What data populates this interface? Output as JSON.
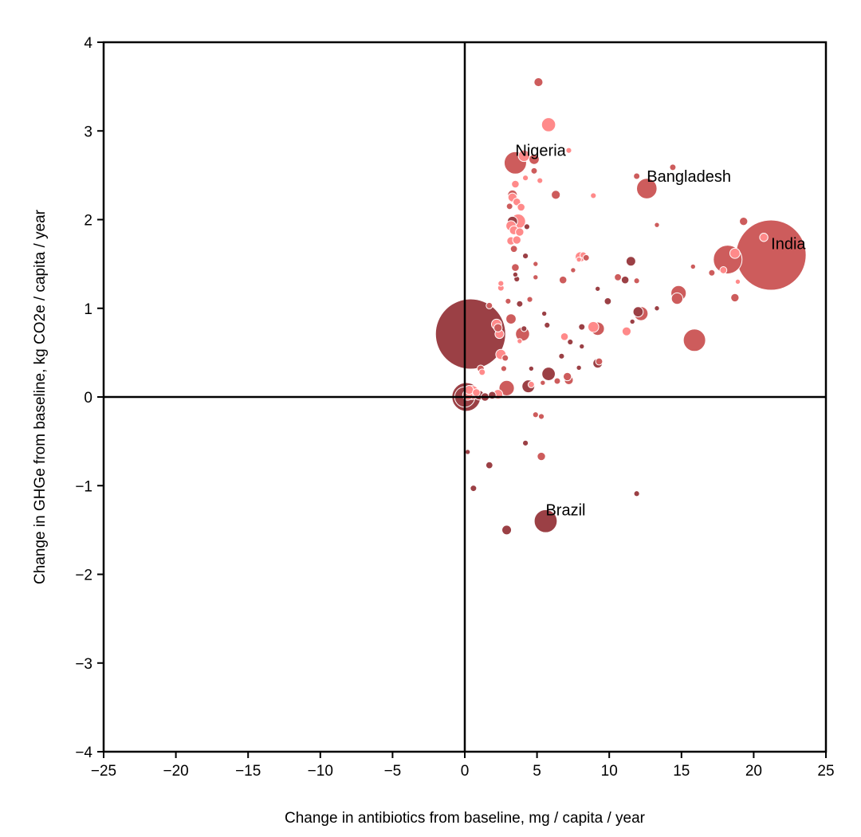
{
  "chart_data": {
    "type": "scatter",
    "title": "",
    "xlabel": "Change in antibiotics from baseline, mg / capita / year",
    "ylabel": "Change in GHGe from baseline, kg CO2e / capita / year",
    "xlim": [
      -25,
      25
    ],
    "ylim": [
      -4,
      4
    ],
    "xticks": [
      -25,
      -20,
      -15,
      -10,
      -5,
      0,
      5,
      10,
      15,
      20,
      25
    ],
    "yticks": [
      -4,
      -3,
      -2,
      -1,
      0,
      1,
      2,
      3,
      4
    ],
    "xtick_labels": [
      "−25",
      "−20",
      "−15",
      "−10",
      "−5",
      "0",
      "5",
      "10",
      "15",
      "20",
      "25"
    ],
    "ytick_labels": [
      "−4",
      "−3",
      "−2",
      "−1",
      "0",
      "1",
      "2",
      "3",
      "4"
    ],
    "grid": false,
    "reference_lines": {
      "x": 0,
      "y": 0
    },
    "colors": {
      "light": "#ff8a8a",
      "medium": "#cd5c5c",
      "dark": "#9b4045",
      "edge": "#ffffff",
      "axis": "#000000"
    },
    "points": [
      {
        "x": 0.4,
        "y": 0.71,
        "s": 11,
        "c": "dark"
      },
      {
        "x": 21.2,
        "y": 1.6,
        "s": 11,
        "c": "medium"
      },
      {
        "x": 18.2,
        "y": 1.55,
        "s": 4.5,
        "c": "medium"
      },
      {
        "x": 15.9,
        "y": 0.64,
        "s": 3.5,
        "c": "medium"
      },
      {
        "x": 12.6,
        "y": 2.35,
        "s": 3.2,
        "c": "medium"
      },
      {
        "x": 3.5,
        "y": 2.64,
        "s": 3.5,
        "c": "medium"
      },
      {
        "x": 5.6,
        "y": -1.4,
        "s": 3.6,
        "c": "dark"
      },
      {
        "x": 0.1,
        "y": 0.0,
        "s": 4.5,
        "c": "dark"
      },
      {
        "x": 0.0,
        "y": 0.0,
        "s": 3.2,
        "c": "dark"
      },
      {
        "x": 0.5,
        "y": 0.05,
        "s": 2.2,
        "c": "light"
      },
      {
        "x": 0.2,
        "y": 0.02,
        "s": 1.6,
        "c": "light"
      },
      {
        "x": 0.3,
        "y": 0.08,
        "s": 1.4,
        "c": "light"
      },
      {
        "x": 1.0,
        "y": 0.02,
        "s": 1.5,
        "c": "dark"
      },
      {
        "x": 1.4,
        "y": 0.0,
        "s": 1.3,
        "c": "dark"
      },
      {
        "x": 1.9,
        "y": 0.02,
        "s": 1.2,
        "c": "dark"
      },
      {
        "x": 2.3,
        "y": 0.03,
        "s": 1.5,
        "c": "light"
      },
      {
        "x": 0.8,
        "y": 0.05,
        "s": 1.2,
        "c": "light"
      },
      {
        "x": 5.8,
        "y": 3.07,
        "s": 2.2,
        "c": "light"
      },
      {
        "x": 5.1,
        "y": 3.55,
        "s": 1.4,
        "c": "medium"
      },
      {
        "x": 4.1,
        "y": 2.72,
        "s": 1.8,
        "c": "light"
      },
      {
        "x": 4.8,
        "y": 2.68,
        "s": 1.6,
        "c": "medium"
      },
      {
        "x": 7.2,
        "y": 2.78,
        "s": 0.9,
        "c": "light"
      },
      {
        "x": 4.8,
        "y": 2.55,
        "s": 1.0,
        "c": "medium"
      },
      {
        "x": 4.2,
        "y": 2.47,
        "s": 0.9,
        "c": "light"
      },
      {
        "x": 5.2,
        "y": 2.44,
        "s": 0.9,
        "c": "light"
      },
      {
        "x": 3.5,
        "y": 2.4,
        "s": 1.2,
        "c": "light"
      },
      {
        "x": 3.3,
        "y": 2.28,
        "s": 1.5,
        "c": "medium"
      },
      {
        "x": 3.3,
        "y": 2.25,
        "s": 1.4,
        "c": "light"
      },
      {
        "x": 3.6,
        "y": 2.2,
        "s": 1.2,
        "c": "light"
      },
      {
        "x": 3.1,
        "y": 2.15,
        "s": 1.0,
        "c": "medium"
      },
      {
        "x": 3.9,
        "y": 2.14,
        "s": 1.2,
        "c": "light"
      },
      {
        "x": 3.3,
        "y": 1.98,
        "s": 1.6,
        "c": "dark"
      },
      {
        "x": 3.7,
        "y": 1.98,
        "s": 2.3,
        "c": "light"
      },
      {
        "x": 3.2,
        "y": 1.93,
        "s": 1.6,
        "c": "light"
      },
      {
        "x": 3.4,
        "y": 1.88,
        "s": 1.4,
        "c": "light"
      },
      {
        "x": 3.8,
        "y": 1.86,
        "s": 1.3,
        "c": "light"
      },
      {
        "x": 4.3,
        "y": 1.92,
        "s": 0.9,
        "c": "dark"
      },
      {
        "x": 3.2,
        "y": 1.76,
        "s": 1.3,
        "c": "light"
      },
      {
        "x": 3.6,
        "y": 1.77,
        "s": 1.3,
        "c": "light"
      },
      {
        "x": 3.4,
        "y": 1.67,
        "s": 1.1,
        "c": "medium"
      },
      {
        "x": 4.2,
        "y": 1.59,
        "s": 0.9,
        "c": "dark"
      },
      {
        "x": 3.5,
        "y": 1.46,
        "s": 1.2,
        "c": "medium"
      },
      {
        "x": 4.9,
        "y": 1.5,
        "s": 0.8,
        "c": "medium"
      },
      {
        "x": 3.6,
        "y": 1.33,
        "s": 0.9,
        "c": "dark"
      },
      {
        "x": 3.5,
        "y": 1.38,
        "s": 0.8,
        "c": "dark"
      },
      {
        "x": 2.5,
        "y": 1.28,
        "s": 0.9,
        "c": "light"
      },
      {
        "x": 2.5,
        "y": 1.23,
        "s": 1.0,
        "c": "light"
      },
      {
        "x": 4.9,
        "y": 1.35,
        "s": 0.8,
        "c": "medium"
      },
      {
        "x": 6.8,
        "y": 1.32,
        "s": 1.2,
        "c": "medium"
      },
      {
        "x": 3.0,
        "y": 1.08,
        "s": 0.9,
        "c": "medium"
      },
      {
        "x": 3.8,
        "y": 1.05,
        "s": 1.0,
        "c": "dark"
      },
      {
        "x": 4.5,
        "y": 1.1,
        "s": 0.9,
        "c": "medium"
      },
      {
        "x": 1.7,
        "y": 1.03,
        "s": 1.0,
        "c": "medium"
      },
      {
        "x": 7.5,
        "y": 1.43,
        "s": 0.8,
        "c": "medium"
      },
      {
        "x": 8.0,
        "y": 1.58,
        "s": 1.6,
        "c": "light"
      },
      {
        "x": 8.2,
        "y": 1.6,
        "s": 1.0,
        "c": "light"
      },
      {
        "x": 8.4,
        "y": 1.57,
        "s": 1.0,
        "c": "medium"
      },
      {
        "x": 7.9,
        "y": 1.55,
        "s": 0.8,
        "c": "light"
      },
      {
        "x": 9.2,
        "y": 1.22,
        "s": 0.8,
        "c": "dark"
      },
      {
        "x": 9.9,
        "y": 1.08,
        "s": 1.1,
        "c": "dark"
      },
      {
        "x": 10.6,
        "y": 1.35,
        "s": 1.1,
        "c": "medium"
      },
      {
        "x": 11.1,
        "y": 1.32,
        "s": 1.2,
        "c": "dark"
      },
      {
        "x": 11.5,
        "y": 1.53,
        "s": 1.5,
        "c": "dark"
      },
      {
        "x": 11.6,
        "y": 0.85,
        "s": 0.8,
        "c": "dark"
      },
      {
        "x": 11.9,
        "y": 1.31,
        "s": 0.9,
        "c": "medium"
      },
      {
        "x": 11.9,
        "y": 2.49,
        "s": 1.0,
        "c": "medium"
      },
      {
        "x": 8.9,
        "y": 2.27,
        "s": 0.9,
        "c": "light"
      },
      {
        "x": 6.3,
        "y": 2.28,
        "s": 1.4,
        "c": "medium"
      },
      {
        "x": 14.4,
        "y": 2.59,
        "s": 1.0,
        "c": "medium"
      },
      {
        "x": 13.3,
        "y": 1.94,
        "s": 0.8,
        "c": "medium"
      },
      {
        "x": 15.8,
        "y": 1.47,
        "s": 0.8,
        "c": "medium"
      },
      {
        "x": 17.1,
        "y": 1.4,
        "s": 1.0,
        "c": "medium"
      },
      {
        "x": 17.9,
        "y": 1.43,
        "s": 1.1,
        "c": "light"
      },
      {
        "x": 18.7,
        "y": 1.62,
        "s": 1.6,
        "c": "light"
      },
      {
        "x": 18.9,
        "y": 1.3,
        "s": 0.8,
        "c": "light"
      },
      {
        "x": 19.3,
        "y": 1.98,
        "s": 1.3,
        "c": "medium"
      },
      {
        "x": 20.7,
        "y": 1.8,
        "s": 1.3,
        "c": "light"
      },
      {
        "x": 18.7,
        "y": 1.12,
        "s": 1.3,
        "c": "medium"
      },
      {
        "x": 14.8,
        "y": 1.17,
        "s": 2.4,
        "c": "medium"
      },
      {
        "x": 14.7,
        "y": 1.11,
        "s": 1.8,
        "c": "medium"
      },
      {
        "x": 13.3,
        "y": 1.0,
        "s": 0.8,
        "c": "dark"
      },
      {
        "x": 12.0,
        "y": 0.96,
        "s": 1.6,
        "c": "dark"
      },
      {
        "x": 12.2,
        "y": 0.94,
        "s": 2.2,
        "c": "medium"
      },
      {
        "x": 11.2,
        "y": 0.74,
        "s": 1.4,
        "c": "light"
      },
      {
        "x": 9.2,
        "y": 0.77,
        "s": 2.1,
        "c": "medium"
      },
      {
        "x": 8.9,
        "y": 0.79,
        "s": 1.7,
        "c": "light"
      },
      {
        "x": 8.1,
        "y": 0.79,
        "s": 1.0,
        "c": "dark"
      },
      {
        "x": 8.1,
        "y": 0.57,
        "s": 0.8,
        "c": "dark"
      },
      {
        "x": 7.3,
        "y": 0.62,
        "s": 0.9,
        "c": "dark"
      },
      {
        "x": 6.9,
        "y": 0.68,
        "s": 1.2,
        "c": "light"
      },
      {
        "x": 6.7,
        "y": 0.46,
        "s": 0.9,
        "c": "dark"
      },
      {
        "x": 5.7,
        "y": 0.81,
        "s": 0.9,
        "c": "dark"
      },
      {
        "x": 5.5,
        "y": 0.94,
        "s": 0.8,
        "c": "dark"
      },
      {
        "x": 4.0,
        "y": 0.71,
        "s": 2.2,
        "c": "medium"
      },
      {
        "x": 4.1,
        "y": 0.77,
        "s": 0.9,
        "c": "dark"
      },
      {
        "x": 3.8,
        "y": 0.63,
        "s": 0.8,
        "c": "light"
      },
      {
        "x": 3.2,
        "y": 0.88,
        "s": 1.6,
        "c": "medium"
      },
      {
        "x": 2.2,
        "y": 0.82,
        "s": 1.6,
        "c": "light"
      },
      {
        "x": 2.3,
        "y": 0.78,
        "s": 1.3,
        "c": "medium"
      },
      {
        "x": 2.4,
        "y": 0.71,
        "s": 1.4,
        "c": "light"
      },
      {
        "x": 2.5,
        "y": 0.48,
        "s": 1.6,
        "c": "light"
      },
      {
        "x": 2.8,
        "y": 0.44,
        "s": 1.0,
        "c": "medium"
      },
      {
        "x": 2.7,
        "y": 0.32,
        "s": 0.9,
        "c": "medium"
      },
      {
        "x": 1.2,
        "y": 0.28,
        "s": 1.0,
        "c": "light"
      },
      {
        "x": 1.1,
        "y": 0.32,
        "s": 1.1,
        "c": "medium"
      },
      {
        "x": 2.9,
        "y": 0.1,
        "s": 2.4,
        "c": "medium"
      },
      {
        "x": 4.4,
        "y": 0.12,
        "s": 2.0,
        "c": "dark"
      },
      {
        "x": 4.6,
        "y": 0.32,
        "s": 0.8,
        "c": "dark"
      },
      {
        "x": 4.6,
        "y": 0.14,
        "s": 1.0,
        "c": "light"
      },
      {
        "x": 5.4,
        "y": 0.16,
        "s": 0.8,
        "c": "medium"
      },
      {
        "x": 5.8,
        "y": 0.26,
        "s": 2.1,
        "c": "dark"
      },
      {
        "x": 6.4,
        "y": 0.18,
        "s": 1.0,
        "c": "medium"
      },
      {
        "x": 7.1,
        "y": 0.23,
        "s": 1.3,
        "c": "medium"
      },
      {
        "x": 7.2,
        "y": 0.19,
        "s": 1.4,
        "c": "medium"
      },
      {
        "x": 7.9,
        "y": 0.33,
        "s": 0.8,
        "c": "dark"
      },
      {
        "x": 9.2,
        "y": 0.38,
        "s": 1.5,
        "c": "dark"
      },
      {
        "x": 9.3,
        "y": 0.4,
        "s": 1.1,
        "c": "medium"
      },
      {
        "x": 4.9,
        "y": -0.2,
        "s": 0.9,
        "c": "medium"
      },
      {
        "x": 5.3,
        "y": -0.22,
        "s": 0.9,
        "c": "medium"
      },
      {
        "x": 4.2,
        "y": -0.52,
        "s": 0.9,
        "c": "dark"
      },
      {
        "x": 5.3,
        "y": -0.67,
        "s": 1.3,
        "c": "medium"
      },
      {
        "x": 0.2,
        "y": -0.62,
        "s": 0.8,
        "c": "dark"
      },
      {
        "x": 1.7,
        "y": -0.77,
        "s": 1.1,
        "c": "dark"
      },
      {
        "x": 0.6,
        "y": -1.03,
        "s": 1.0,
        "c": "dark"
      },
      {
        "x": 11.9,
        "y": -1.09,
        "s": 0.9,
        "c": "dark"
      },
      {
        "x": 2.9,
        "y": -1.5,
        "s": 1.5,
        "c": "dark"
      }
    ],
    "annotations": [
      {
        "text": "Nigeria",
        "x": 3.5,
        "y": 2.78
      },
      {
        "text": "Bangladesh",
        "x": 12.6,
        "y": 2.49
      },
      {
        "text": "India",
        "x": 21.2,
        "y": 1.73
      },
      {
        "text": "Brazil",
        "x": 5.6,
        "y": -1.27
      }
    ]
  }
}
